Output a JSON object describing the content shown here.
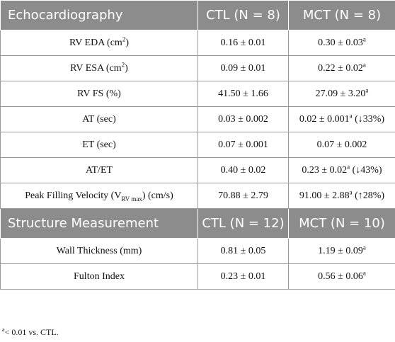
{
  "sections": [
    {
      "headers": [
        "Echocardiography",
        "CTL (N = 8)",
        "MCT (N = 8)"
      ],
      "rows": [
        {
          "param": "RV EDA (cm",
          "param_sup": "2",
          "param_tail": ")",
          "ctl": "0.16 ± 0.01",
          "mct": "0.30 ± 0.03",
          "mct_sup": "a",
          "mct_tail": ""
        },
        {
          "param": "RV ESA (cm",
          "param_sup": "2",
          "param_tail": ")",
          "ctl": "0.09 ± 0.01",
          "mct": "0.22 ± 0.02",
          "mct_sup": "a",
          "mct_tail": ""
        },
        {
          "param": "RV FS (%)",
          "ctl": "41.50 ± 1.66",
          "mct": "27.09 ± 3.20",
          "mct_sup": "a",
          "mct_tail": ""
        },
        {
          "param": "AT (sec)",
          "ctl": "0.03 ± 0.002",
          "mct": "0.02 ± 0.001",
          "mct_sup": "a",
          "mct_tail": " (↓33%)"
        },
        {
          "param": "ET (sec)",
          "ctl": "0.07 ± 0.001",
          "mct": "0.07 ± 0.002",
          "mct_sup": "",
          "mct_tail": ""
        },
        {
          "param": "AT/ET",
          "ctl": "0.40 ± 0.02",
          "mct": "0.23 ± 0.02",
          "mct_sup": "a",
          "mct_tail": " (↓43%)"
        },
        {
          "param": "Peak Filling Velocity (V",
          "param_sub": "RV max",
          "param_tail": ") (cm/s)",
          "ctl": "70.88 ± 2.79",
          "mct": "91.00 ± 2.88",
          "mct_sup": "a",
          "mct_tail": " (↑28%)"
        }
      ]
    },
    {
      "headers": [
        "Structure Measurement",
        "CTL (N = 12)",
        "MCT (N = 10)"
      ],
      "rows": [
        {
          "param": "Wall Thickness (mm)",
          "ctl": "0.81 ± 0.05",
          "mct": "1.19 ± 0.09",
          "mct_sup": "a",
          "mct_tail": ""
        },
        {
          "param": "Fulton Index",
          "ctl": "0.23 ± 0.01",
          "mct": "0.56 ± 0.06",
          "mct_sup": "a",
          "mct_tail": ""
        }
      ]
    }
  ],
  "footnote": {
    "sup": "a",
    "text": "< 0.01 vs. CTL."
  }
}
